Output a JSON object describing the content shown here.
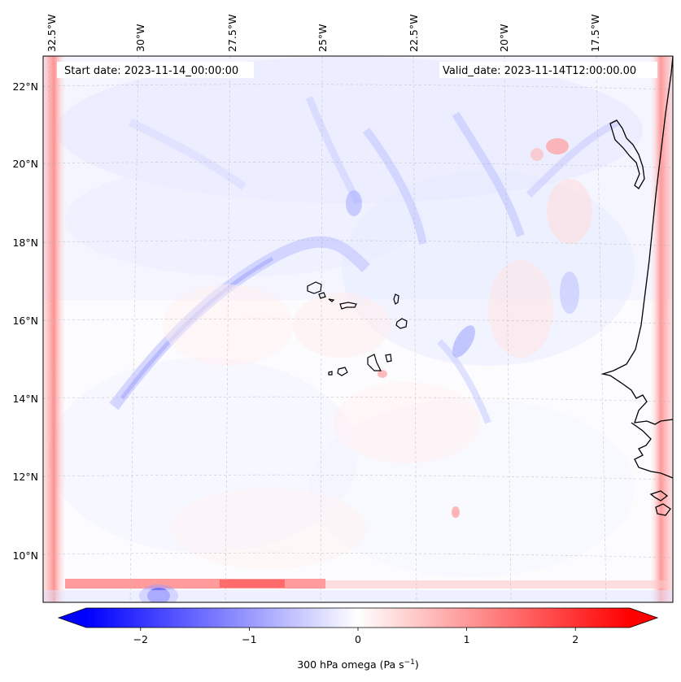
{
  "map": {
    "start_date": "Start date: 2023-11-14_00:00:00",
    "valid_date": "Valid_date: 2023-11-14T12:00:00.00",
    "lon_labels": [
      "32.5°W",
      "30°W",
      "27.5°W",
      "25°W",
      "22.5°W",
      "20°W",
      "17.5°W"
    ],
    "lat_labels": [
      "22°N",
      "20°N",
      "18°N",
      "16°N",
      "14°N",
      "12°N",
      "10°N"
    ],
    "gridlines": true,
    "coastline_color": "#000000"
  },
  "colorbar": {
    "label": "300 hPa omega (Pa s",
    "label_exponent": "−1",
    "label_close": ")",
    "ticks": [
      "−2",
      "−1",
      "0",
      "1",
      "2"
    ],
    "tick_values": [
      -2,
      -1,
      0,
      1,
      2
    ],
    "range": [
      -2.5,
      2.5
    ],
    "extend": "both",
    "colormap": "bwr",
    "low_color": "#0000ff",
    "mid_color": "#ffffff",
    "high_color": "#ff0000"
  }
}
